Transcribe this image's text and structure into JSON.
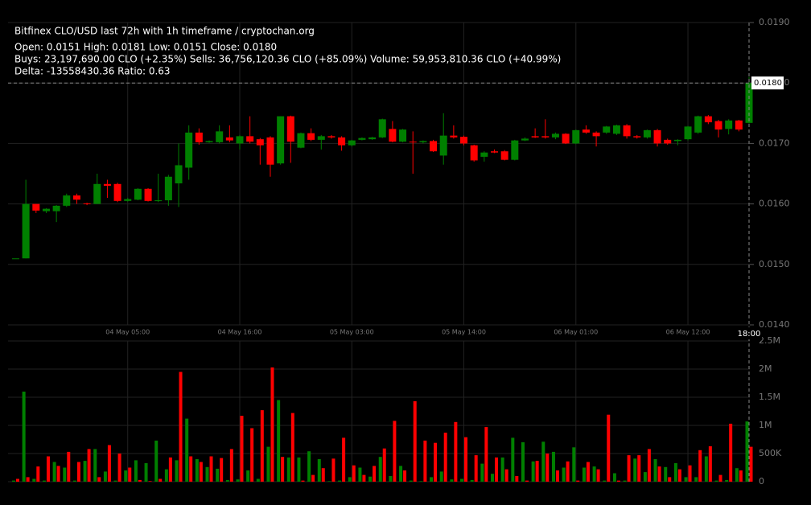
{
  "chart_data": {
    "type": "candlestick",
    "title": "Bitfinex CLO/USD last 72h with 1h timeframe / cryptochan.org",
    "info_lines": [
      "Open: 0.0151  High: 0.0181  Low: 0.0151  Close: 0.0180",
      "Buys: 23,197,690.00 CLO (+2.35%)  Sells: 36,756,120.36 CLO (+85.09%)  Volume: 59,953,810.36 CLO (+40.99%)",
      "Delta: -13558430.36  Ratio: 0.63"
    ],
    "categories": [
      null,
      null,
      null,
      null,
      null,
      null,
      null,
      null,
      null,
      null,
      null,
      "04 May 05:00",
      null,
      null,
      null,
      null,
      null,
      null,
      null,
      null,
      null,
      null,
      "04 May 16:00",
      null,
      null,
      null,
      null,
      null,
      null,
      null,
      null,
      null,
      null,
      "05 May 03:00",
      null,
      null,
      null,
      null,
      null,
      null,
      null,
      null,
      null,
      null,
      "05 May 14:00",
      null,
      null,
      null,
      null,
      null,
      null,
      null,
      null,
      null,
      null,
      "06 May 01:00",
      null,
      null,
      null,
      null,
      null,
      null,
      null,
      null,
      null,
      null,
      "06 May 12:00",
      null,
      null,
      null,
      null,
      null,
      null
    ],
    "open": [
      0.0151,
      0.0151,
      0.016,
      0.01588,
      0.01588,
      0.01597,
      0.01614,
      0.01601,
      0.016,
      0.01633,
      0.01633,
      0.01605,
      0.01607,
      0.01625,
      0.01605,
      0.01606,
      0.01634,
      0.0166,
      0.01718,
      0.01702,
      0.01702,
      0.0171,
      0.017,
      0.01712,
      0.01707,
      0.0171,
      0.01667,
      0.01745,
      0.01693,
      0.01717,
      0.01706,
      0.01712,
      0.0171,
      0.01697,
      0.01706,
      0.01707,
      0.0171,
      0.01724,
      0.01703,
      0.01703,
      0.01702,
      0.01704,
      0.0168,
      0.01713,
      0.01711,
      0.01697,
      0.01678,
      0.01687,
      0.01687,
      0.01673,
      0.01705,
      0.01712,
      0.01712,
      0.0171,
      0.01716,
      0.017,
      0.01723,
      0.01718,
      0.01718,
      0.01716,
      0.0173,
      0.01712,
      0.0171,
      0.01722,
      0.01706,
      0.01704,
      0.01707,
      0.01718,
      0.01745,
      0.01737,
      0.01724,
      0.01738,
      0.01734
    ],
    "high": [
      0.0151,
      0.0164,
      0.016,
      0.01593,
      0.01598,
      0.01617,
      0.01617,
      0.01602,
      0.0165,
      0.0164,
      0.01635,
      0.0161,
      0.01626,
      0.01626,
      0.0165,
      0.01648,
      0.017,
      0.0173,
      0.01725,
      0.01705,
      0.0173,
      0.0173,
      0.01714,
      0.01745,
      0.01709,
      0.01712,
      0.01745,
      0.01746,
      0.01718,
      0.01725,
      0.01714,
      0.01714,
      0.01712,
      0.01706,
      0.0171,
      0.01711,
      0.01741,
      0.01737,
      0.01724,
      0.0172,
      0.01705,
      0.01706,
      0.0175,
      0.0173,
      0.01713,
      0.01698,
      0.01687,
      0.0169,
      0.01689,
      0.01706,
      0.0171,
      0.01725,
      0.0174,
      0.01718,
      0.01717,
      0.01723,
      0.0173,
      0.0172,
      0.01729,
      0.01731,
      0.01732,
      0.01714,
      0.01723,
      0.01724,
      0.01708,
      0.01707,
      0.01729,
      0.01746,
      0.01747,
      0.01739,
      0.0174,
      0.01739,
      0.0181
    ],
    "low": [
      0.0151,
      0.0151,
      0.01585,
      0.01585,
      0.0157,
      0.01595,
      0.016,
      0.01598,
      0.016,
      0.0161,
      0.01603,
      0.01604,
      0.01606,
      0.01604,
      0.01603,
      0.01597,
      0.01595,
      0.0164,
      0.01698,
      0.01701,
      0.017,
      0.01702,
      0.0169,
      0.017,
      0.01665,
      0.01645,
      0.01665,
      0.01668,
      0.01692,
      0.01704,
      0.0169,
      0.01708,
      0.01688,
      0.01695,
      0.01705,
      0.01706,
      0.01709,
      0.01702,
      0.01702,
      0.0165,
      0.017,
      0.01686,
      0.01665,
      0.01708,
      0.01697,
      0.0167,
      0.0167,
      0.01684,
      0.01672,
      0.01672,
      0.01704,
      0.01709,
      0.01708,
      0.01707,
      0.01699,
      0.01699,
      0.01716,
      0.01695,
      0.01716,
      0.01714,
      0.01708,
      0.01708,
      0.01708,
      0.01695,
      0.01698,
      0.01697,
      0.01705,
      0.01716,
      0.01732,
      0.0171,
      0.01715,
      0.0172,
      0.01733
    ],
    "close": [
      0.0151,
      0.016,
      0.01589,
      0.01592,
      0.01597,
      0.01614,
      0.01607,
      0.016,
      0.01633,
      0.0163,
      0.01605,
      0.01608,
      0.01625,
      0.01605,
      0.01606,
      0.01645,
      0.01664,
      0.01718,
      0.01702,
      0.01704,
      0.0172,
      0.01705,
      0.01712,
      0.01703,
      0.01697,
      0.01665,
      0.01745,
      0.01703,
      0.01717,
      0.01706,
      0.01712,
      0.0171,
      0.01697,
      0.01705,
      0.01709,
      0.0171,
      0.0174,
      0.01703,
      0.01723,
      0.01702,
      0.01704,
      0.01687,
      0.01713,
      0.0171,
      0.017,
      0.01672,
      0.01685,
      0.01685,
      0.01673,
      0.01705,
      0.01708,
      0.0171,
      0.0171,
      0.01716,
      0.017,
      0.01722,
      0.01718,
      0.01712,
      0.01728,
      0.0173,
      0.01712,
      0.0171,
      0.01722,
      0.017,
      0.017,
      0.01706,
      0.01728,
      0.01745,
      0.01735,
      0.01723,
      0.01738,
      0.01723,
      0.018
    ],
    "up_color": "#008000",
    "down_color": "#ff0000",
    "ylim": [
      0.014,
      0.019
    ],
    "yticks": [
      {
        "value": 0.014,
        "label": "0.0140"
      },
      {
        "value": 0.015,
        "label": "0.0150"
      },
      {
        "value": 0.016,
        "label": "0.0160"
      },
      {
        "value": 0.017,
        "label": "0.0170"
      },
      {
        "value": 0.018,
        "label": "0.0180"
      },
      {
        "value": 0.019,
        "label": "0.0190"
      }
    ],
    "volume": {
      "series": [
        {
          "name": "Buys",
          "color": "#008000",
          "values": [
            20000.0,
            1600000.0,
            50000.0,
            20000.0,
            350000.0,
            250000.0,
            20000.0,
            370000.0,
            580000.0,
            180000.0,
            20000.0,
            200000.0,
            380000.0,
            330000.0,
            730000.0,
            220000.0,
            380000.0,
            1120000.0,
            400000.0,
            260000.0,
            230000.0,
            30000.0,
            40000.0,
            200000.0,
            50000.0,
            620000.0,
            1450000.0,
            430000.0,
            430000.0,
            540000.0,
            400000.0,
            10000.0,
            20000.0,
            80000.0,
            250000.0,
            90000.0,
            440000.0,
            100000.0,
            280000.0,
            20000.0,
            10000.0,
            80000.0,
            180000.0,
            40000.0,
            50000.0,
            30000.0,
            320000.0,
            140000.0,
            430000.0,
            780000.0,
            700000.0,
            360000.0,
            710000.0,
            530000.0,
            250000.0,
            610000.0,
            250000.0,
            270000.0,
            20000.0,
            150000.0,
            20000.0,
            410000.0,
            170000.0,
            400000.0,
            260000.0,
            330000.0,
            80000.0,
            80000.0,
            450000.0,
            20000.0,
            30000.0,
            240000.0,
            1070000.0
          ]
        },
        {
          "name": "Sells",
          "color": "#ff0000",
          "values": [
            50000.0,
            80000.0,
            270000.0,
            450000.0,
            280000.0,
            530000.0,
            350000.0,
            580000.0,
            80000.0,
            650000.0,
            500000.0,
            250000.0,
            30000.0,
            10000.0,
            50000.0,
            430000.0,
            1950000.0,
            450000.0,
            350000.0,
            450000.0,
            420000.0,
            580000.0,
            1170000.0,
            950000.0,
            1270000.0,
            2030000.0,
            440000.0,
            1220000.0,
            20000.0,
            120000.0,
            240000.0,
            410000.0,
            780000.0,
            290000.0,
            120000.0,
            280000.0,
            590000.0,
            1080000.0,
            200000.0,
            1430000.0,
            730000.0,
            690000.0,
            870000.0,
            1060000.0,
            790000.0,
            470000.0,
            970000.0,
            430000.0,
            220000.0,
            100000.0,
            20000.0,
            370000.0,
            500000.0,
            200000.0,
            360000.0,
            20000.0,
            350000.0,
            220000.0,
            1190000.0,
            20000.0,
            470000.0,
            470000.0,
            580000.0,
            270000.0,
            80000.0,
            220000.0,
            290000.0,
            560000.0,
            630000.0,
            120000.0,
            1030000.0,
            200000.0,
            620000.0
          ]
        }
      ],
      "ylim": [
        0,
        2500000
      ],
      "yticks": [
        0,
        {
          "value": 500000,
          "label": "500K"
        },
        {
          "value": 1000000,
          "label": "1M"
        },
        {
          "value": 1500000,
          "label": "1.5M"
        },
        {
          "value": 2000000,
          "label": "2M"
        },
        {
          "value": 2500000,
          "label": "2.5M"
        }
      ]
    },
    "crosshair": {
      "x_label": "18:00",
      "y_value": 0.018,
      "y_label": "0.0180"
    },
    "grid": true
  }
}
